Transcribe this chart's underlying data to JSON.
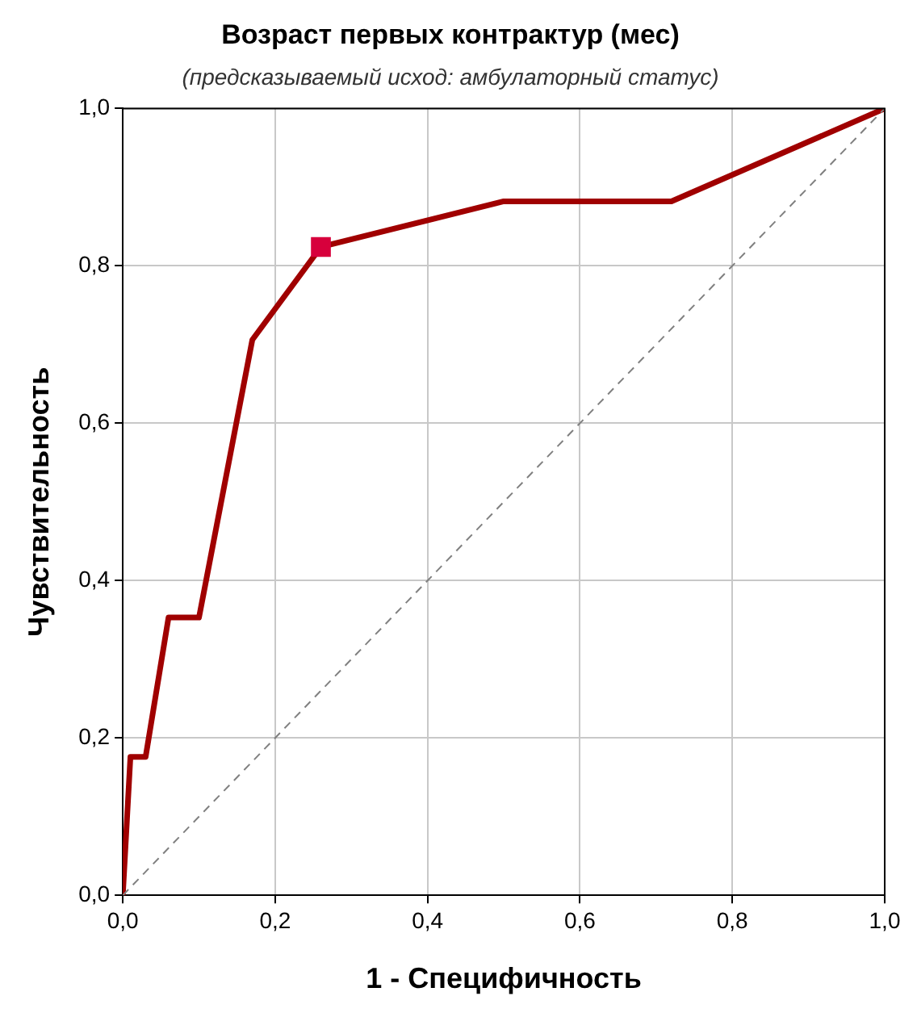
{
  "chart_data": {
    "type": "line",
    "title": "Возраст первых контрактур (мес)",
    "subtitle": "(предсказываемый исход: амбулаторный статус)",
    "xlabel": "1 - Специфичность",
    "ylabel": "Чувствительность",
    "xlim": [
      0,
      1
    ],
    "ylim": [
      0,
      1
    ],
    "xticks": [
      {
        "value": 0,
        "label": "0,0"
      },
      {
        "value": 0.2,
        "label": "0,2"
      },
      {
        "value": 0.4,
        "label": "0,4"
      },
      {
        "value": 0.6,
        "label": "0,6"
      },
      {
        "value": 0.8,
        "label": "0,8"
      },
      {
        "value": 1,
        "label": "1,0"
      }
    ],
    "yticks": [
      {
        "value": 0,
        "label": "0,0"
      },
      {
        "value": 0.2,
        "label": "0,2"
      },
      {
        "value": 0.4,
        "label": "0,4"
      },
      {
        "value": 0.6,
        "label": "0,6"
      },
      {
        "value": 0.8,
        "label": "0,8"
      },
      {
        "value": 1,
        "label": "1,0"
      }
    ],
    "grid": true,
    "legend": false,
    "series": [
      {
        "type": "line",
        "color": "#808080",
        "line_style": "dashed",
        "marker": "none",
        "x": [
          0,
          1
        ],
        "values": [
          0,
          1
        ]
      },
      {
        "type": "line",
        "color": "#a00000",
        "line_style": "solid",
        "marker": "none",
        "x": [
          0,
          0.01,
          0.03,
          0.06,
          0.1,
          0.17,
          0.26,
          0.5,
          0.72,
          1
        ],
        "values": [
          0,
          0.176,
          0.176,
          0.353,
          0.353,
          0.706,
          0.824,
          0.882,
          0.882,
          1
        ]
      },
      {
        "type": "scatter",
        "color": "#d7003c",
        "marker": "square",
        "x": [
          0.26
        ],
        "values": [
          0.824
        ]
      }
    ]
  }
}
